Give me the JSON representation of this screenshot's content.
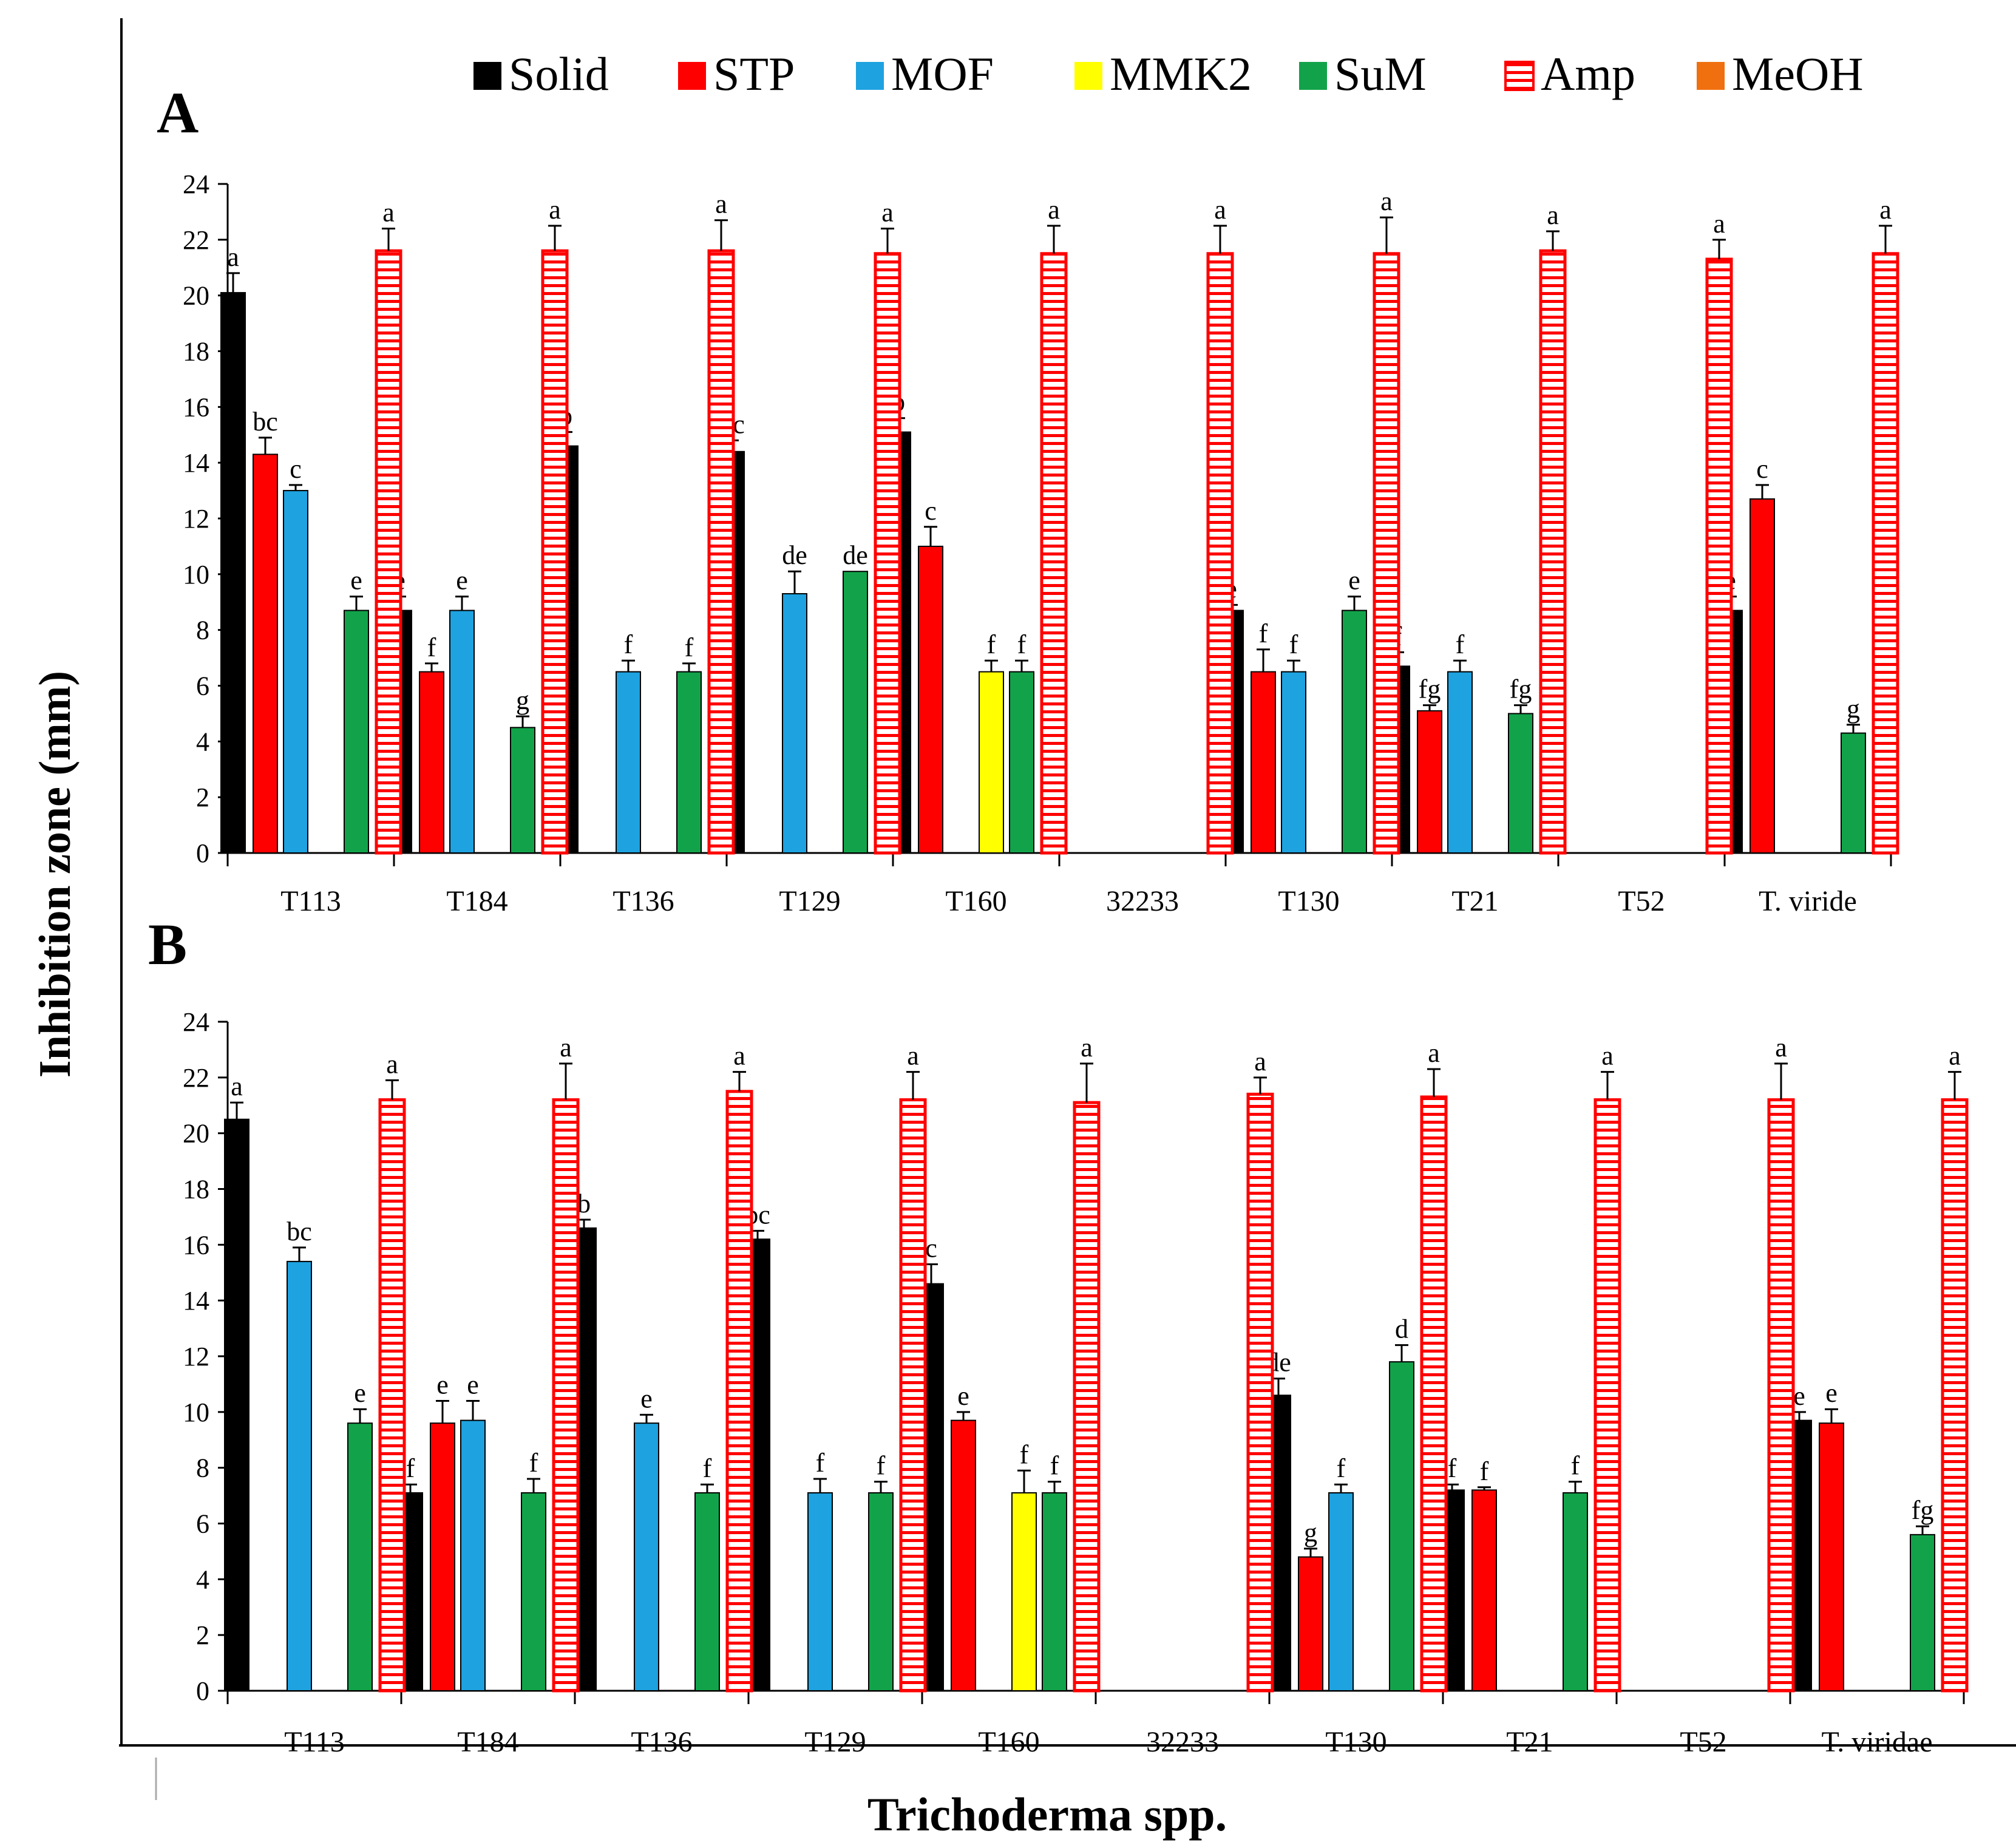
{
  "chart_data": {
    "type": "bar",
    "ylabel": "Inhibition zone (mm)",
    "xlabel": "Trichoderma spp.",
    "ylim": [
      0,
      24
    ],
    "yticks": [
      0,
      2,
      4,
      6,
      8,
      10,
      12,
      14,
      16,
      18,
      20,
      22,
      24
    ],
    "legend": [
      {
        "name": "Solid",
        "color": "#000000",
        "pattern": "solid"
      },
      {
        "name": "STP",
        "color": "#ff0000",
        "pattern": "solid"
      },
      {
        "name": "MOF",
        "color": "#1ea2e0",
        "pattern": "solid"
      },
      {
        "name": "MMK2",
        "color": "#ffff00",
        "pattern": "solid"
      },
      {
        "name": "SuM",
        "color": "#12a34a",
        "pattern": "solid"
      },
      {
        "name": "Amp",
        "color": "#ff0000",
        "pattern": "hatched"
      },
      {
        "name": "MeOH",
        "color": "#f07010",
        "pattern": "solid"
      }
    ],
    "panels": [
      {
        "label": "A",
        "categories": [
          "T113",
          "T184",
          "T136",
          "T129",
          "T160",
          "32233",
          "T130",
          "T21",
          "T52",
          "T. viride"
        ],
        "series": [
          {
            "name": "Solid",
            "values": [
              20.1,
              8.7,
              14.6,
              14.4,
              15.1,
              null,
              8.7,
              6.7,
              null,
              8.7
            ],
            "errors": [
              0.7,
              0.5,
              0.5,
              0.4,
              0.5,
              null,
              0.2,
              0.5,
              null,
              0.5
            ],
            "letters": [
              "a",
              "e",
              "b",
              "bc",
              "b",
              null,
              "e",
              "f",
              null,
              "e"
            ]
          },
          {
            "name": "STP",
            "values": [
              14.3,
              6.5,
              null,
              null,
              11.0,
              null,
              6.5,
              5.1,
              null,
              12.7
            ],
            "errors": [
              0.6,
              0.3,
              null,
              null,
              0.7,
              null,
              0.8,
              0.2,
              null,
              0.5
            ],
            "letters": [
              "bc",
              "f",
              null,
              null,
              "c",
              null,
              "f",
              "fg",
              null,
              "c"
            ]
          },
          {
            "name": "MOF",
            "values": [
              13.0,
              8.7,
              6.5,
              9.3,
              null,
              null,
              6.5,
              6.5,
              null,
              null
            ],
            "errors": [
              0.2,
              0.5,
              0.4,
              0.8,
              null,
              null,
              0.4,
              0.4,
              null,
              null
            ],
            "letters": [
              "c",
              "e",
              "f",
              "de",
              null,
              null,
              "f",
              "f",
              null,
              null
            ]
          },
          {
            "name": "MMK2",
            "values": [
              null,
              null,
              null,
              null,
              6.5,
              null,
              null,
              null,
              null,
              null
            ],
            "errors": [
              null,
              null,
              null,
              null,
              0.4,
              null,
              null,
              null,
              null,
              null
            ],
            "letters": [
              null,
              null,
              null,
              null,
              "f",
              null,
              null,
              null,
              null,
              null
            ]
          },
          {
            "name": "SuM",
            "values": [
              8.7,
              4.5,
              6.5,
              10.1,
              6.5,
              null,
              8.7,
              5.0,
              null,
              4.3
            ],
            "errors": [
              0.5,
              0.4,
              0.3,
              0.0,
              0.4,
              null,
              0.5,
              0.3,
              null,
              0.3
            ],
            "letters": [
              "e",
              "g",
              "f",
              "de",
              "f",
              null,
              "e",
              "fg",
              null,
              "g"
            ]
          },
          {
            "name": "Amp",
            "values": [
              21.6,
              21.6,
              21.6,
              21.5,
              21.5,
              21.5,
              21.5,
              21.6,
              21.3,
              21.5
            ],
            "errors": [
              0.8,
              0.9,
              1.1,
              0.9,
              1.0,
              1.0,
              1.3,
              0.7,
              0.7,
              1.0
            ],
            "letters": [
              "a",
              "a",
              "a",
              "a",
              "a",
              "a",
              "a",
              "a",
              "a",
              "a"
            ]
          }
        ]
      },
      {
        "label": "B",
        "categories": [
          "T113",
          "T184",
          "T136",
          "T129",
          "T160",
          "32233",
          "T130",
          "T21",
          "T52",
          "T. viridae"
        ],
        "series": [
          {
            "name": "Solid",
            "values": [
              20.5,
              7.1,
              16.6,
              16.2,
              14.6,
              null,
              10.6,
              7.2,
              null,
              9.7
            ],
            "errors": [
              0.6,
              0.3,
              0.3,
              0.3,
              0.7,
              null,
              0.6,
              0.2,
              null,
              0.3
            ],
            "letters": [
              "a",
              "f",
              "b",
              "bc",
              "c",
              null,
              "de",
              "f",
              null,
              "e"
            ]
          },
          {
            "name": "STP",
            "values": [
              null,
              9.6,
              null,
              null,
              9.7,
              null,
              4.8,
              7.2,
              null,
              9.6
            ],
            "errors": [
              null,
              0.8,
              null,
              null,
              0.3,
              null,
              0.3,
              0.1,
              null,
              0.5
            ],
            "letters": [
              null,
              "e",
              null,
              null,
              "e",
              null,
              "g",
              "f",
              null,
              "e"
            ]
          },
          {
            "name": "MOF",
            "values": [
              15.4,
              9.7,
              9.6,
              7.1,
              null,
              null,
              7.1,
              null,
              null,
              null
            ],
            "errors": [
              0.5,
              0.7,
              0.3,
              0.5,
              null,
              null,
              0.3,
              null,
              null,
              null
            ],
            "letters": [
              "bc",
              "e",
              "e",
              "f",
              null,
              null,
              "f",
              null,
              null,
              null
            ]
          },
          {
            "name": "MMK2",
            "values": [
              null,
              null,
              null,
              null,
              7.1,
              null,
              null,
              null,
              null,
              null
            ],
            "errors": [
              null,
              null,
              null,
              null,
              0.8,
              null,
              null,
              null,
              null,
              null
            ],
            "letters": [
              null,
              null,
              null,
              null,
              "f",
              null,
              null,
              null,
              null,
              null
            ]
          },
          {
            "name": "SuM",
            "values": [
              9.6,
              7.1,
              7.1,
              7.1,
              7.1,
              null,
              11.8,
              7.1,
              null,
              5.6
            ],
            "errors": [
              0.5,
              0.5,
              0.3,
              0.4,
              0.4,
              null,
              0.6,
              0.4,
              null,
              0.3
            ],
            "letters": [
              "e",
              "f",
              "f",
              "f",
              "f",
              null,
              "d",
              "f",
              null,
              "fg"
            ]
          },
          {
            "name": "Amp",
            "values": [
              21.2,
              21.2,
              21.5,
              21.2,
              21.1,
              21.4,
              21.3,
              21.2,
              21.2,
              21.2
            ],
            "errors": [
              0.7,
              1.3,
              0.7,
              1.0,
              1.4,
              0.6,
              1.0,
              1.0,
              1.3,
              1.0
            ],
            "letters": [
              "a",
              "a",
              "a",
              "a",
              "a",
              "a",
              "a",
              "a",
              "a",
              "a"
            ]
          }
        ]
      }
    ]
  }
}
